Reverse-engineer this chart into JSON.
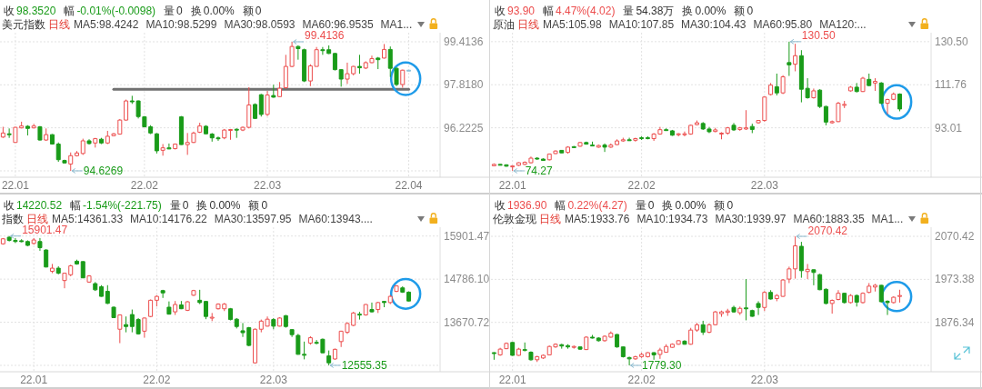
{
  "chart_data": [
    {
      "type": "candlestick",
      "title": "美元指数",
      "subtitle": "收98.3520 幅-0.01%(-0.0098) 量0 换0.00% 额0",
      "annotations": [
        "日线",
        "MA5:98.4242",
        "MA10:98.5299",
        "MA30:98.0593",
        "MA60:96.9535",
        "MA1...",
        "99.4136",
        "94.6269"
      ],
      "categories": [
        null,
        null,
        "22.01",
        null,
        null,
        null,
        null,
        null,
        null,
        null,
        null,
        null,
        null,
        null,
        null,
        null,
        null,
        null,
        null,
        null,
        null,
        null,
        null,
        "22.02",
        null,
        null,
        null,
        null,
        null,
        null,
        null,
        null,
        null,
        null,
        null,
        null,
        null,
        null,
        null,
        null,
        null,
        null,
        null,
        "22.03",
        null,
        null,
        null,
        null,
        null,
        null,
        null,
        null,
        null,
        null,
        null,
        null,
        null,
        null,
        null,
        null,
        null,
        null,
        null,
        null,
        null,
        null,
        "22.04"
      ],
      "ohlc": [
        [
          95.88,
          96.26,
          95.85,
          96.03
        ],
        [
          96.0,
          96.2,
          95.85,
          95.99
        ],
        [
          95.68,
          96.26,
          95.68,
          96.24
        ],
        [
          96.22,
          96.45,
          96.2,
          96.29
        ],
        [
          96.28,
          96.32,
          95.94,
          96.2
        ],
        [
          96.22,
          96.37,
          96.2,
          96.29
        ],
        [
          96.26,
          96.29,
          95.75,
          95.77
        ],
        [
          95.77,
          96.2,
          95.74,
          95.97
        ],
        [
          95.97,
          95.99,
          95.6,
          95.62
        ],
        [
          95.62,
          95.68,
          94.96,
          95.04
        ],
        [
          95.01,
          95.04,
          94.9,
          94.92
        ],
        [
          94.88,
          95.31,
          94.6269,
          95.19
        ],
        [
          95.19,
          95.36,
          95.16,
          95.29
        ],
        [
          95.27,
          95.82,
          95.22,
          95.74
        ],
        [
          95.74,
          95.8,
          95.6,
          95.64
        ],
        [
          95.66,
          95.85,
          95.49,
          95.82
        ],
        [
          95.8,
          95.85,
          95.62,
          95.66
        ],
        [
          95.66,
          96.11,
          95.62,
          95.91
        ],
        [
          95.93,
          96.03,
          95.91,
          96.0
        ],
        [
          95.99,
          96.55,
          95.97,
          96.51
        ],
        [
          96.51,
          97.27,
          96.49,
          97.22
        ],
        [
          97.22,
          97.41,
          97.11,
          97.2
        ],
        [
          97.22,
          97.24,
          96.57,
          96.64
        ],
        [
          96.63,
          96.66,
          96.24,
          96.26
        ],
        [
          96.26,
          96.32,
          95.99,
          96.03
        ],
        [
          96.0,
          96.03,
          95.27,
          95.37
        ],
        [
          95.39,
          95.62,
          95.19,
          95.48
        ],
        [
          95.48,
          95.64,
          95.43,
          95.44
        ],
        [
          95.45,
          95.64,
          95.42,
          95.62
        ],
        [
          96.63,
          96.66,
          95.59,
          95.6
        ],
        [
          95.6,
          96.03,
          95.22,
          95.68
        ],
        [
          95.68,
          96.08,
          95.66,
          96.03
        ],
        [
          96.06,
          96.41,
          96.03,
          96.29
        ],
        [
          96.28,
          96.32,
          95.99,
          96.0
        ],
        [
          95.99,
          96.03,
          95.71,
          95.85
        ],
        [
          95.85,
          95.9,
          95.74,
          95.82
        ],
        [
          95.85,
          96.18,
          95.8,
          96.14
        ],
        [
          96.13,
          96.18,
          95.78,
          96.16
        ],
        [
          96.17,
          96.2,
          95.85,
          96.14
        ],
        [
          96.14,
          96.27,
          96.1,
          96.24
        ],
        [
          96.24,
          97.73,
          96.2,
          97.07
        ],
        [
          97.09,
          97.13,
          96.55,
          96.57
        ],
        [
          97.45,
          97.48,
          96.64,
          96.72
        ],
        [
          96.72,
          97.59,
          96.66,
          97.44
        ],
        [
          97.42,
          97.82,
          97.34,
          97.36
        ],
        [
          97.38,
          97.92,
          97.36,
          97.69
        ],
        [
          97.71,
          98.93,
          97.67,
          98.5
        ],
        [
          98.5,
          99.4136,
          98.47,
          99.24
        ],
        [
          99.24,
          99.28,
          98.75,
          99.16
        ],
        [
          99.12,
          99.16,
          97.92,
          97.96
        ],
        [
          97.96,
          98.58,
          97.77,
          98.52
        ],
        [
          98.5,
          99.22,
          98.5,
          99.12
        ],
        [
          99.12,
          99.22,
          98.93,
          99.1
        ],
        [
          99.12,
          99.28,
          98.96,
          98.98
        ],
        [
          98.98,
          99.0,
          98.35,
          98.38
        ],
        [
          98.38,
          98.4,
          97.75,
          98.03
        ],
        [
          98.03,
          98.64,
          97.85,
          98.23
        ],
        [
          98.23,
          98.52,
          98.17,
          98.5
        ],
        [
          98.5,
          98.93,
          98.23,
          98.45
        ],
        [
          98.44,
          98.69,
          98.4,
          98.64
        ],
        [
          98.64,
          98.9,
          98.62,
          98.79
        ],
        [
          98.81,
          98.85,
          98.4,
          98.75
        ],
        [
          98.81,
          99.33,
          98.79,
          99.13
        ],
        [
          99.13,
          99.24,
          98.11,
          98.43
        ],
        [
          98.43,
          98.46,
          97.77,
          97.83
        ],
        [
          97.83,
          98.38,
          97.71,
          98.36
        ],
        [
          98.36,
          98.36,
          98.35,
          98.352
        ]
      ],
      "colors": [
        "#ec4d4d",
        "#199b19",
        "#ec4d4d",
        "#ec4d4d",
        "#199b19",
        "#ec4d4d",
        "#199b19",
        "#ec4d4d",
        "#199b19",
        "#199b19",
        "#199b19",
        "#ec4d4d",
        "#ec4d4d",
        "#ec4d4d",
        "#199b19",
        "#ec4d4d",
        "#199b19",
        "#ec4d4d",
        "#ec4d4d",
        "#ec4d4d",
        "#ec4d4d",
        "#199b19",
        "#199b19",
        "#199b19",
        "#199b19",
        "#199b19",
        "#ec4d4d",
        "#199b19",
        "#ec4d4d",
        "#199b19",
        "#ec4d4d",
        "#ec4d4d",
        "#ec4d4d",
        "#199b19",
        "#199b19",
        "#199b19",
        "#ec4d4d",
        "#ec4d4d",
        "#199b19",
        "#ec4d4d",
        "#ec4d4d",
        "#199b19",
        "#199b19",
        "#ec4d4d",
        "#199b19",
        "#ec4d4d",
        "#ec4d4d",
        "#ec4d4d",
        "#199b19",
        "#199b19",
        "#ec4d4d",
        "#ec4d4d",
        "#199b19",
        "#199b19",
        "#199b19",
        "#199b19",
        "#ec4d4d",
        "#ec4d4d",
        "#199b19",
        "#ec4d4d",
        "#ec4d4d",
        "#199b19",
        "#ec4d4d",
        "#199b19",
        "#199b19",
        "#ec4d4d",
        "#8cc0d8"
      ],
      "series": [
        {
          "type": "line",
          "color": "#707070",
          "values": [
            null,
            null,
            null,
            null,
            null,
            null,
            null,
            null,
            null,
            null,
            null,
            null,
            null,
            null,
            null,
            null,
            null,
            null,
            97.65,
            97.65,
            97.65,
            97.65,
            97.65,
            97.65,
            97.65,
            97.65,
            97.65,
            97.65,
            97.65,
            97.65,
            97.65,
            97.65,
            97.65,
            97.65,
            97.65,
            97.65,
            97.65,
            97.65,
            97.65,
            97.65,
            97.65,
            97.65,
            97.65,
            97.65,
            97.65,
            97.65,
            97.65,
            97.65,
            97.65,
            97.65,
            97.65,
            97.65,
            97.65,
            97.65,
            97.65,
            97.65,
            97.65,
            97.65,
            97.65,
            97.65,
            97.65,
            97.65,
            97.65,
            97.65,
            97.65,
            97.65,
            97.65
          ]
        }
      ],
      "ylim": [
        94.39,
        99.75
      ],
      "yticks": [
        99.4136,
        {
          "value": 97.818,
          "label": "97.8180"
        },
        96.2225,
        {
          "value": 94.6269,
          "label": null
        }
      ],
      "grid": true
    },
    {
      "type": "candlestick",
      "title": "原油",
      "subtitle": "收93.90 幅4.47%(4.02) 量54.38万 换0.00% 额0",
      "annotations": [
        "日线",
        "MA5:105.98",
        "MA10:107.85",
        "MA30:104.43",
        "MA60:95.80",
        "MA120:...",
        "130.50",
        "74.27"
      ],
      "categories": [
        null,
        null,
        null,
        "22.01",
        null,
        null,
        null,
        null,
        null,
        null,
        null,
        null,
        null,
        null,
        null,
        null,
        null,
        null,
        null,
        null,
        null,
        null,
        null,
        null,
        "22.02",
        null,
        null,
        null,
        null,
        null,
        null,
        null,
        null,
        null,
        null,
        null,
        null,
        null,
        null,
        null,
        null,
        null,
        null,
        null,
        "22.03",
        null,
        null,
        null,
        null,
        null,
        null,
        null,
        null,
        null,
        null,
        null,
        null,
        null,
        null,
        null,
        null,
        null,
        null,
        null,
        null,
        null,
        null
      ],
      "ohlc": [
        [
          76.5,
          77.5,
          76.4,
          77.1
        ],
        [
          77.1,
          77.3,
          76.8,
          76.9
        ],
        [
          76.9,
          77.1,
          76.1,
          76.3
        ],
        [
          76.0,
          76.7,
          74.27,
          76.4
        ],
        [
          76.7,
          78.0,
          76.4,
          77.8
        ],
        [
          77.1,
          78.4,
          76.8,
          78.0
        ],
        [
          77.8,
          80.5,
          77.5,
          79.8
        ],
        [
          79.8,
          80.2,
          79.1,
          79.4
        ],
        [
          79.4,
          79.7,
          78.7,
          78.8
        ],
        [
          79.1,
          81.8,
          78.8,
          81.6
        ],
        [
          81.8,
          83.2,
          81.6,
          82.9
        ],
        [
          83.2,
          83.3,
          82.0,
          82.1
        ],
        [
          82.3,
          85.0,
          81.8,
          84.6
        ],
        [
          84.8,
          85.1,
          84.4,
          84.6
        ],
        [
          85.0,
          86.9,
          84.8,
          86.6
        ],
        [
          86.6,
          87.0,
          85.7,
          85.9
        ],
        [
          85.5,
          87.0,
          85.0,
          85.1
        ],
        [
          84.6,
          85.7,
          84.3,
          85.3
        ],
        [
          85.5,
          86.2,
          82.5,
          84.6
        ],
        [
          84.6,
          86.2,
          84.3,
          85.5
        ],
        [
          85.7,
          88.0,
          85.5,
          87.3
        ],
        [
          87.3,
          88.7,
          87.0,
          87.8
        ],
        [
          87.8,
          88.7,
          87.3,
          87.6
        ],
        [
          87.6,
          88.7,
          87.0,
          88.3
        ],
        [
          88.7,
          89.3,
          87.7,
          88.3
        ],
        [
          88.7,
          89.3,
          88.0,
          88.3
        ],
        [
          88.3,
          90.7,
          87.3,
          90.3
        ],
        [
          90.3,
          93.4,
          90.0,
          92.2
        ],
        [
          92.2,
          92.8,
          91.7,
          91.9
        ],
        [
          91.7,
          92.1,
          89.5,
          89.8
        ],
        [
          90.0,
          90.7,
          89.3,
          90.4
        ],
        [
          90.0,
          91.4,
          89.3,
          90.4
        ],
        [
          90.3,
          94.4,
          90.0,
          94.1
        ],
        [
          94.4,
          96.2,
          94.1,
          95.2
        ],
        [
          94.9,
          95.5,
          92.1,
          92.5
        ],
        [
          92.5,
          93.4,
          90.7,
          91.3
        ],
        [
          91.4,
          93.0,
          91.1,
          92.1
        ],
        [
          90.3,
          91.1,
          88.0,
          90.7
        ],
        [
          90.7,
          93.4,
          90.0,
          93.0
        ],
        [
          94.1,
          95.1,
          91.7,
          92.1
        ],
        [
          92.3,
          93.4,
          91.7,
          93.0
        ],
        [
          92.5,
          100.7,
          92.1,
          93.0
        ],
        [
          93.6,
          94.8,
          90.7,
          92.3
        ],
        [
          95.2,
          96.4,
          94.8,
          96.2
        ],
        [
          96.2,
          106.7,
          95.7,
          106.4
        ],
        [
          107.5,
          112.5,
          107.1,
          111.6
        ],
        [
          110.9,
          116.6,
          107.1,
          108.2
        ],
        [
          108.2,
          115.9,
          107.7,
          115.2
        ],
        [
          121.4,
          130.5,
          115.6,
          120.4
        ],
        [
          120.7,
          129.6,
          117.6,
          124.4
        ],
        [
          124.4,
          126.8,
          104.1,
          109.8
        ],
        [
          110.2,
          114.6,
          105.7,
          106.1
        ],
        [
          106.1,
          110.1,
          105.7,
          109.1
        ],
        [
          109.4,
          109.8,
          101.6,
          102.3
        ],
        [
          102.3,
          102.6,
          94.1,
          95.5
        ],
        [
          95.2,
          96.2,
          94.8,
          95.7
        ],
        [
          95.7,
          104.3,
          95.5,
          103.7
        ],
        [
          102.8,
          104.7,
          101.6,
          103.2
        ],
        [
          109.1,
          111.2,
          108.8,
          110.7
        ],
        [
          110.7,
          112.5,
          108.4,
          108.8
        ],
        [
          108.8,
          115.2,
          108.6,
          114.6
        ],
        [
          114.1,
          116.6,
          111.2,
          111.4
        ],
        [
          112.5,
          114.6,
          109.1,
          113.2
        ],
        [
          112.5,
          112.9,
          103.2,
          103.7
        ],
        [
          103.7,
          105.7,
          98.9,
          105.3
        ],
        [
          105.4,
          108.4,
          105.0,
          107.7
        ],
        [
          107.7,
          108.0,
          100.2,
          101.2
        ]
      ],
      "colors": [
        "#ec4d4d",
        "#199b19",
        "#199b19",
        "#ec4d4d",
        "#ec4d4d",
        "#ec4d4d",
        "#ec4d4d",
        "#199b19",
        "#199b19",
        "#ec4d4d",
        "#ec4d4d",
        "#199b19",
        "#ec4d4d",
        "#199b19",
        "#ec4d4d",
        "#199b19",
        "#199b19",
        "#ec4d4d",
        "#199b19",
        "#ec4d4d",
        "#ec4d4d",
        "#ec4d4d",
        "#199b19",
        "#ec4d4d",
        "#199b19",
        "#199b19",
        "#ec4d4d",
        "#ec4d4d",
        "#199b19",
        "#199b19",
        "#ec4d4d",
        "#ec4d4d",
        "#ec4d4d",
        "#ec4d4d",
        "#199b19",
        "#199b19",
        "#ec4d4d",
        "#ec4d4d",
        "#ec4d4d",
        "#199b19",
        "#ec4d4d",
        "#ec4d4d",
        "#199b19",
        "#ec4d4d",
        "#ec4d4d",
        "#ec4d4d",
        "#199b19",
        "#ec4d4d",
        "#199b19",
        "#ec4d4d",
        "#199b19",
        "#199b19",
        "#ec4d4d",
        "#199b19",
        "#199b19",
        "#ec4d4d",
        "#ec4d4d",
        "#ec4d4d",
        "#ec4d4d",
        "#199b19",
        "#ec4d4d",
        "#199b19",
        "#ec4d4d",
        "#199b19",
        "#ec4d4d",
        "#ec4d4d",
        "#199b19"
      ],
      "ylim": [
        71.5,
        134.4
      ],
      "yticks": [
        {
          "value": 130.5,
          "label": "130.50"
        },
        111.76,
        93.01,
        {
          "value": 74.27,
          "label": null
        }
      ],
      "grid": true
    },
    {
      "type": "candlestick",
      "title": "指数",
      "subtitle": "收14220.52 幅-1.54%(-221.75) 量0 换0.00% 额0",
      "annotations": [
        "日线",
        "MA5:14361.33",
        "MA10:14176.22",
        "MA30:13597.95",
        "MA60:13943....",
        "15901.47",
        "12555.35"
      ],
      "categories": [
        null,
        null,
        null,
        null,
        null,
        "22.01",
        null,
        null,
        null,
        null,
        null,
        null,
        null,
        null,
        null,
        null,
        null,
        null,
        null,
        null,
        null,
        null,
        null,
        null,
        null,
        "22.02",
        null,
        null,
        null,
        null,
        null,
        null,
        null,
        null,
        null,
        null,
        null,
        null,
        null,
        null,
        null,
        null,
        null,
        null,
        "22.03",
        null,
        null,
        null,
        null,
        null,
        null,
        null,
        null,
        null,
        null,
        null,
        null,
        null,
        null,
        null,
        null,
        null,
        null,
        null,
        null,
        null,
        null
      ],
      "ohlc": [
        [
          15700,
          15850,
          15680,
          15830
        ],
        [
          15870,
          15901.47,
          15760,
          15790
        ],
        [
          15790,
          15850,
          15720,
          15760
        ],
        [
          15780,
          15820,
          15740,
          15760
        ],
        [
          15760,
          15790,
          15640,
          15660
        ],
        [
          15710,
          15850,
          15680,
          15800
        ],
        [
          15760,
          15850,
          15520,
          15600
        ],
        [
          15540,
          15560,
          15090,
          15100
        ],
        [
          14990,
          15180,
          14940,
          15070
        ],
        [
          15070,
          15120,
          14910,
          14940
        ],
        [
          14750,
          14950,
          14550,
          14940
        ],
        [
          14900,
          15160,
          14860,
          15130
        ],
        [
          15250,
          15290,
          15160,
          15180
        ],
        [
          15240,
          15250,
          14810,
          14820
        ],
        [
          14710,
          14890,
          14690,
          14870
        ],
        [
          14670,
          14710,
          14480,
          14510
        ],
        [
          14590,
          14630,
          14330,
          14340
        ],
        [
          14470,
          14630,
          14140,
          14160
        ],
        [
          14060,
          14080,
          13780,
          13790
        ],
        [
          13490,
          13870,
          13130,
          13860
        ],
        [
          13610,
          13820,
          13410,
          13560
        ],
        [
          13870,
          14000,
          13410,
          13560
        ],
        [
          13740,
          13780,
          13350,
          13370
        ],
        [
          13440,
          13790,
          13270,
          13780
        ],
        [
          13820,
          14260,
          13800,
          14240
        ],
        [
          14240,
          14370,
          14080,
          14340
        ],
        [
          14490,
          14510,
          14300,
          14430
        ],
        [
          14060,
          14210,
          13870,
          13880
        ],
        [
          13940,
          14220,
          13860,
          14130
        ],
        [
          14120,
          14220,
          14010,
          14020
        ],
        [
          13980,
          14220,
          13960,
          14200
        ],
        [
          14370,
          14510,
          14350,
          14490
        ],
        [
          14240,
          14510,
          14140,
          14180
        ],
        [
          14210,
          14220,
          13750,
          13820
        ],
        [
          13790,
          13910,
          13700,
          13800
        ],
        [
          14020,
          14160,
          14000,
          14140
        ],
        [
          14020,
          14170,
          13960,
          14140
        ],
        [
          14020,
          14040,
          13720,
          13740
        ],
        [
          13750,
          13780,
          13510,
          13560
        ],
        [
          13450,
          13650,
          13290,
          13400
        ],
        [
          13530,
          13550,
          13050,
          13070
        ],
        [
          12620,
          13510,
          12600,
          13490
        ],
        [
          13490,
          13740,
          13410,
          13700
        ],
        [
          13570,
          13820,
          13560,
          13750
        ],
        [
          13740,
          13780,
          13490,
          13570
        ],
        [
          13570,
          13800,
          13560,
          13780
        ],
        [
          13840,
          13860,
          13530,
          13560
        ],
        [
          13480,
          13490,
          13290,
          13350
        ],
        [
          13330,
          13370,
          12830,
          12840
        ],
        [
          12840,
          13170,
          12710,
          12830
        ],
        [
          13130,
          13310,
          13090,
          13270
        ],
        [
          13150,
          13210,
          13100,
          13130
        ],
        [
          13230,
          13250,
          12870,
          12880
        ],
        [
          12800,
          12940,
          12555.35,
          12620
        ],
        [
          12720,
          12990,
          12700,
          12970
        ],
        [
          13170,
          13450,
          13030,
          13440
        ],
        [
          13410,
          13670,
          13370,
          13640
        ],
        [
          13590,
          13940,
          13570,
          13910
        ],
        [
          13880,
          13940,
          13740,
          13860
        ],
        [
          13860,
          14140,
          13840,
          14130
        ],
        [
          14000,
          14180,
          13920,
          13940
        ],
        [
          14000,
          14200,
          13910,
          14180
        ],
        [
          14210,
          14220,
          14060,
          14180
        ],
        [
          14180,
          14380,
          14140,
          14340
        ],
        [
          14470,
          14630,
          14450,
          14610
        ],
        [
          14560,
          14600,
          14430,
          14450
        ],
        [
          14450,
          14470,
          14210,
          14220.52
        ]
      ],
      "colors": [
        "#ec4d4d",
        "#199b19",
        "#199b19",
        "#199b19",
        "#199b19",
        "#ec4d4d",
        "#199b19",
        "#199b19",
        "#ec4d4d",
        "#199b19",
        "#ec4d4d",
        "#ec4d4d",
        "#199b19",
        "#199b19",
        "#ec4d4d",
        "#199b19",
        "#199b19",
        "#199b19",
        "#199b19",
        "#ec4d4d",
        "#199b19",
        "#199b19",
        "#199b19",
        "#ec4d4d",
        "#ec4d4d",
        "#ec4d4d",
        "#199b19",
        "#199b19",
        "#ec4d4d",
        "#199b19",
        "#ec4d4d",
        "#ec4d4d",
        "#199b19",
        "#199b19",
        "#ec4d4d",
        "#ec4d4d",
        "#ec4d4d",
        "#199b19",
        "#199b19",
        "#199b19",
        "#199b19",
        "#ec4d4d",
        "#ec4d4d",
        "#ec4d4d",
        "#199b19",
        "#ec4d4d",
        "#199b19",
        "#199b19",
        "#199b19",
        "#199b19",
        "#ec4d4d",
        "#199b19",
        "#199b19",
        "#199b19",
        "#ec4d4d",
        "#ec4d4d",
        "#ec4d4d",
        "#ec4d4d",
        "#199b19",
        "#ec4d4d",
        "#199b19",
        "#ec4d4d",
        "#199b19",
        "#ec4d4d",
        "#ec4d4d",
        "#199b19",
        "#199b19"
      ],
      "ylim": [
        12390,
        16130
      ],
      "yticks": [
        15901.47,
        {
          "value": 14786.1,
          "label": "14786.10"
        },
        13670.72,
        {
          "value": 12555.35,
          "label": null
        }
      ],
      "grid": true
    },
    {
      "type": "candlestick",
      "title": "伦敦金现",
      "subtitle": "收1936.90 幅0.22%(4.27) 量0 换0.00% 额0",
      "annotations": [
        "日线",
        "MA5:1933.76",
        "MA10:1934.73",
        "MA30:1939.97",
        "MA60:1883.35",
        "MA1...",
        "2070.42",
        "1779.30"
      ],
      "categories": [
        null,
        null,
        null,
        "22.01",
        null,
        null,
        null,
        null,
        null,
        null,
        null,
        null,
        null,
        null,
        null,
        null,
        null,
        null,
        null,
        null,
        null,
        null,
        null,
        null,
        "22.02",
        null,
        null,
        null,
        null,
        null,
        null,
        null,
        null,
        null,
        null,
        null,
        null,
        null,
        null,
        null,
        null,
        null,
        null,
        null,
        "22.03",
        null,
        null,
        null,
        null,
        null,
        null,
        null,
        null,
        null,
        null,
        null,
        null,
        null,
        null,
        null,
        null,
        null,
        null,
        null,
        null,
        null,
        null
      ],
      "ohlc": [
        [
          1808,
          1809,
          1792,
          1806
        ],
        [
          1803,
          1819,
          1801,
          1816
        ],
        [
          1817,
          1831,
          1816,
          1829
        ],
        [
          1831,
          1832,
          1801,
          1802
        ],
        [
          1802,
          1819,
          1801,
          1816
        ],
        [
          1815,
          1831,
          1811,
          1813
        ],
        [
          1809,
          1811,
          1790,
          1792
        ],
        [
          1792,
          1801,
          1787,
          1799
        ],
        [
          1796,
          1804,
          1794,
          1802
        ],
        [
          1803,
          1824,
          1802,
          1822
        ],
        [
          1821,
          1829,
          1819,
          1827
        ],
        [
          1826,
          1828,
          1817,
          1823
        ],
        [
          1824,
          1827,
          1817,
          1821
        ],
        [
          1820,
          1824,
          1817,
          1822
        ],
        [
          1821,
          1822,
          1814,
          1816
        ],
        [
          1815,
          1845,
          1814,
          1843
        ],
        [
          1843,
          1848,
          1840,
          1841
        ],
        [
          1841,
          1843,
          1833,
          1835
        ],
        [
          1835,
          1847,
          1833,
          1845
        ],
        [
          1843,
          1856,
          1842,
          1852
        ],
        [
          1849,
          1850,
          1819,
          1821
        ],
        [
          1821,
          1822,
          1797,
          1799
        ],
        [
          1797,
          1799,
          1779.3,
          1794
        ],
        [
          1794,
          1801,
          1792,
          1799
        ],
        [
          1799,
          1808,
          1796,
          1804
        ],
        [
          1799,
          1809,
          1797,
          1808
        ],
        [
          1808,
          1809,
          1792,
          1803
        ],
        [
          1804,
          1819,
          1794,
          1814
        ],
        [
          1809,
          1827,
          1808,
          1822
        ],
        [
          1820,
          1829,
          1819,
          1827
        ],
        [
          1827,
          1836,
          1826,
          1835
        ],
        [
          1834,
          1836,
          1826,
          1827
        ],
        [
          1827,
          1864,
          1826,
          1859
        ],
        [
          1859,
          1875,
          1855,
          1871
        ],
        [
          1871,
          1880,
          1848,
          1854
        ],
        [
          1854,
          1874,
          1852,
          1871
        ],
        [
          1871,
          1902,
          1870,
          1900
        ],
        [
          1896,
          1903,
          1889,
          1900
        ],
        [
          1899,
          1907,
          1891,
          1902
        ],
        [
          1910,
          1914,
          1898,
          1900
        ],
        [
          1898,
          1912,
          1893,
          1908
        ],
        [
          1909,
          1974,
          1881,
          1907
        ],
        [
          1903,
          1905,
          1889,
          1890
        ],
        [
          1919,
          1924,
          1893,
          1910
        ],
        [
          1910,
          1947,
          1902,
          1944
        ],
        [
          1944,
          1949,
          1928,
          1929
        ],
        [
          1930,
          1940,
          1924,
          1937
        ],
        [
          1935,
          1974,
          1934,
          1972
        ],
        [
          1974,
          2002,
          1965,
          1997
        ],
        [
          1997,
          2070.42,
          1975,
          2049
        ],
        [
          2048,
          2058,
          1977,
          1993
        ],
        [
          1991,
          2008,
          1974,
          1996
        ],
        [
          1995,
          1996,
          1960,
          1989
        ],
        [
          1984,
          1986,
          1949,
          1950
        ],
        [
          1951,
          1953,
          1917,
          1919
        ],
        [
          1919,
          1928,
          1896,
          1926
        ],
        [
          1928,
          1949,
          1926,
          1942
        ],
        [
          1942,
          1943,
          1919,
          1921
        ],
        [
          1921,
          1940,
          1919,
          1937
        ],
        [
          1937,
          1939,
          1912,
          1922
        ],
        [
          1921,
          1944,
          1919,
          1942
        ],
        [
          1944,
          1965,
          1942,
          1958
        ],
        [
          1956,
          1963,
          1946,
          1960
        ],
        [
          1960,
          1961,
          1921,
          1923
        ],
        [
          1924,
          1926,
          1893,
          1921
        ],
        [
          1921,
          1935,
          1919,
          1933
        ],
        [
          1935,
          1950,
          1921,
          1936.9
        ]
      ],
      "colors": [
        "#199b19",
        "#ec4d4d",
        "#ec4d4d",
        "#199b19",
        "#ec4d4d",
        "#199b19",
        "#199b19",
        "#ec4d4d",
        "#ec4d4d",
        "#ec4d4d",
        "#ec4d4d",
        "#199b19",
        "#199b19",
        "#ec4d4d",
        "#199b19",
        "#ec4d4d",
        "#199b19",
        "#199b19",
        "#ec4d4d",
        "#ec4d4d",
        "#199b19",
        "#199b19",
        "#199b19",
        "#ec4d4d",
        "#ec4d4d",
        "#ec4d4d",
        "#199b19",
        "#ec4d4d",
        "#ec4d4d",
        "#ec4d4d",
        "#ec4d4d",
        "#199b19",
        "#ec4d4d",
        "#ec4d4d",
        "#199b19",
        "#ec4d4d",
        "#ec4d4d",
        "#ec4d4d",
        "#ec4d4d",
        "#199b19",
        "#ec4d4d",
        "#199b19",
        "#199b19",
        "#199b19",
        "#ec4d4d",
        "#199b19",
        "#ec4d4d",
        "#ec4d4d",
        "#ec4d4d",
        "#ec4d4d",
        "#199b19",
        "#ec4d4d",
        "#199b19",
        "#199b19",
        "#199b19",
        "#ec4d4d",
        "#ec4d4d",
        "#199b19",
        "#ec4d4d",
        "#199b19",
        "#ec4d4d",
        "#ec4d4d",
        "#ec4d4d",
        "#199b19",
        "#199b19",
        "#ec4d4d",
        "#ec4d4d"
      ],
      "ylim": [
        1765,
        2091
      ],
      "yticks": [
        2070.42,
        1973.38,
        1876.34,
        {
          "value": 1779.3,
          "label": null
        }
      ],
      "grid": true
    }
  ]
}
